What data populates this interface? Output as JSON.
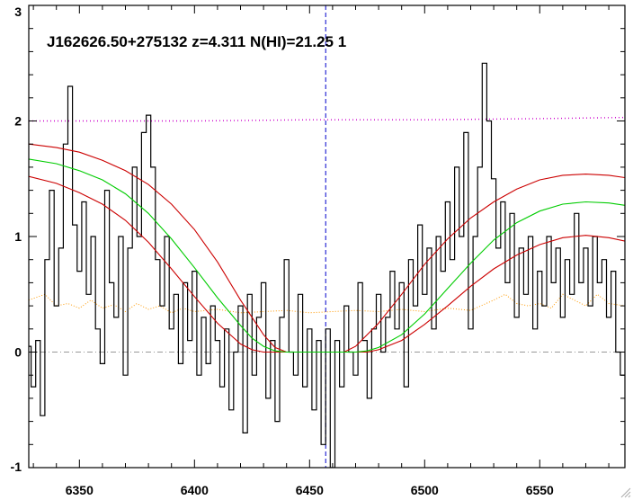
{
  "chart_data": {
    "type": "line",
    "title": "J162626.50+275132 z=4.311 N(HI)=21.25 1",
    "xlabel": "",
    "ylabel": "",
    "xlim": [
      6328,
      6587
    ],
    "ylim": [
      -1,
      3
    ],
    "x_ticks": [
      6350,
      6400,
      6450,
      6500,
      6550
    ],
    "y_ticks": [
      -1,
      0,
      1,
      2,
      3
    ],
    "center_marker_x": 6457,
    "zero_line_y": 0,
    "continuum_level_y": 2.0,
    "colors": {
      "flux": "#000000",
      "model": "#00cc00",
      "model_bounds": "#cc0000",
      "error": "#ff9900",
      "continuum": "#cc00cc",
      "marker": "#0000cc",
      "zero": "#999999"
    },
    "series": [
      {
        "key": "flux",
        "style": "step",
        "x": [
          6328,
          6330,
          6332,
          6334,
          6336,
          6338,
          6340,
          6342,
          6344,
          6346,
          6348,
          6350,
          6352,
          6354,
          6356,
          6358,
          6360,
          6362,
          6364,
          6366,
          6368,
          6370,
          6372,
          6374,
          6376,
          6378,
          6380,
          6382,
          6384,
          6386,
          6388,
          6390,
          6392,
          6394,
          6396,
          6398,
          6400,
          6402,
          6404,
          6406,
          6408,
          6410,
          6412,
          6414,
          6416,
          6418,
          6420,
          6422,
          6424,
          6426,
          6428,
          6430,
          6432,
          6434,
          6436,
          6438,
          6440,
          6442,
          6444,
          6446,
          6448,
          6450,
          6452,
          6454,
          6456,
          6458,
          6460,
          6462,
          6464,
          6466,
          6468,
          6470,
          6472,
          6474,
          6476,
          6478,
          6480,
          6482,
          6484,
          6486,
          6488,
          6490,
          6492,
          6494,
          6496,
          6498,
          6500,
          6502,
          6504,
          6506,
          6508,
          6510,
          6512,
          6514,
          6516,
          6518,
          6520,
          6522,
          6524,
          6526,
          6528,
          6530,
          6532,
          6534,
          6536,
          6538,
          6540,
          6542,
          6544,
          6546,
          6548,
          6550,
          6552,
          6554,
          6556,
          6558,
          6560,
          6562,
          6564,
          6566,
          6568,
          6570,
          6572,
          6574,
          6576,
          6578,
          6580,
          6582,
          6584,
          6586
        ],
        "y": [
          0.05,
          -0.3,
          0.1,
          -0.55,
          0.8,
          1.4,
          0.4,
          0.9,
          1.8,
          2.3,
          1.1,
          0.7,
          1.3,
          0.5,
          1.0,
          0.2,
          -0.1,
          1.4,
          0.6,
          0.3,
          1.0,
          -0.2,
          0.9,
          1.6,
          1.0,
          1.9,
          2.05,
          1.6,
          0.8,
          0.4,
          1.0,
          0.2,
          0.5,
          -0.1,
          0.6,
          0.1,
          0.7,
          -0.2,
          0.3,
          -0.1,
          0.4,
          0.1,
          -0.3,
          0.2,
          -0.5,
          0.0,
          0.4,
          -0.7,
          0.5,
          -0.2,
          0.3,
          0.6,
          -0.4,
          0.1,
          -0.6,
          0.3,
          0.8,
          0.0,
          -0.2,
          0.5,
          -0.3,
          0.2,
          -0.5,
          0.1,
          -0.8,
          0.2,
          -1.0,
          0.1,
          -0.3,
          0.4,
          0.0,
          -0.2,
          0.6,
          0.1,
          -0.4,
          0.2,
          0.5,
          0.0,
          0.3,
          0.7,
          0.2,
          0.6,
          -0.3,
          0.8,
          0.4,
          1.1,
          0.5,
          0.9,
          0.2,
          1.0,
          0.7,
          1.3,
          0.8,
          1.6,
          1.0,
          1.9,
          0.2,
          1.0,
          1.6,
          2.5,
          2.0,
          1.5,
          0.9,
          1.3,
          0.6,
          1.2,
          0.3,
          0.9,
          0.5,
          1.0,
          0.2,
          0.7,
          0.4,
          1.0,
          0.6,
          0.9,
          0.3,
          0.8,
          0.5,
          1.2,
          0.6,
          0.9,
          0.4,
          1.0,
          0.6,
          0.8,
          0.3,
          0.7,
          0.0,
          -0.2
        ]
      },
      {
        "key": "model",
        "style": "line",
        "x": [
          6328,
          6340,
          6350,
          6360,
          6370,
          6380,
          6390,
          6400,
          6410,
          6420,
          6425,
          6430,
          6435,
          6440,
          6470,
          6475,
          6480,
          6490,
          6500,
          6510,
          6520,
          6530,
          6540,
          6550,
          6560,
          6570,
          6580,
          6587
        ],
        "y": [
          1.67,
          1.63,
          1.57,
          1.49,
          1.37,
          1.2,
          0.98,
          0.73,
          0.47,
          0.23,
          0.12,
          0.05,
          0.01,
          0.0,
          0.0,
          0.01,
          0.04,
          0.15,
          0.33,
          0.55,
          0.77,
          0.97,
          1.12,
          1.22,
          1.28,
          1.3,
          1.29,
          1.27
        ]
      },
      {
        "key": "model-upper",
        "style": "line",
        "x": [
          6328,
          6340,
          6350,
          6360,
          6370,
          6380,
          6390,
          6400,
          6410,
          6420,
          6430,
          6435,
          6440,
          6465,
          6470,
          6480,
          6490,
          6500,
          6510,
          6520,
          6530,
          6540,
          6550,
          6560,
          6570,
          6580,
          6587
        ],
        "y": [
          1.8,
          1.77,
          1.73,
          1.66,
          1.57,
          1.45,
          1.28,
          1.06,
          0.78,
          0.45,
          0.15,
          0.04,
          0.0,
          0.0,
          0.05,
          0.25,
          0.5,
          0.76,
          0.98,
          1.16,
          1.3,
          1.41,
          1.49,
          1.53,
          1.54,
          1.53,
          1.51
        ]
      },
      {
        "key": "model-lower",
        "style": "line",
        "x": [
          6328,
          6340,
          6350,
          6360,
          6370,
          6380,
          6390,
          6400,
          6410,
          6420,
          6425,
          6430,
          6475,
          6480,
          6490,
          6500,
          6510,
          6520,
          6530,
          6540,
          6550,
          6560,
          6570,
          6580,
          6587
        ],
        "y": [
          1.52,
          1.46,
          1.38,
          1.28,
          1.14,
          0.95,
          0.72,
          0.48,
          0.25,
          0.07,
          0.02,
          0.0,
          0.0,
          0.02,
          0.1,
          0.24,
          0.4,
          0.57,
          0.72,
          0.84,
          0.93,
          0.99,
          1.01,
          0.99,
          0.96
        ]
      },
      {
        "key": "error",
        "style": "dotted",
        "x": [
          6328,
          6335,
          6340,
          6345,
          6350,
          6355,
          6360,
          6365,
          6370,
          6375,
          6380,
          6385,
          6390,
          6395,
          6400,
          6410,
          6420,
          6430,
          6440,
          6450,
          6460,
          6470,
          6480,
          6490,
          6500,
          6510,
          6520,
          6530,
          6535,
          6540,
          6545,
          6550,
          6555,
          6560,
          6565,
          6570,
          6575,
          6580,
          6587
        ],
        "y": [
          0.45,
          0.5,
          0.4,
          0.42,
          0.38,
          0.45,
          0.38,
          0.41,
          0.35,
          0.42,
          0.37,
          0.4,
          0.34,
          0.38,
          0.35,
          0.37,
          0.34,
          0.35,
          0.36,
          0.34,
          0.35,
          0.36,
          0.35,
          0.37,
          0.35,
          0.38,
          0.36,
          0.45,
          0.5,
          0.42,
          0.4,
          0.42,
          0.38,
          0.5,
          0.45,
          0.4,
          0.5,
          0.42,
          0.4
        ]
      },
      {
        "key": "continuum",
        "style": "dotted",
        "x": [
          6328,
          6400,
          6450,
          6500,
          6550,
          6587
        ],
        "y": [
          2.0,
          2.0,
          2.01,
          2.01,
          2.02,
          2.03
        ]
      }
    ]
  }
}
